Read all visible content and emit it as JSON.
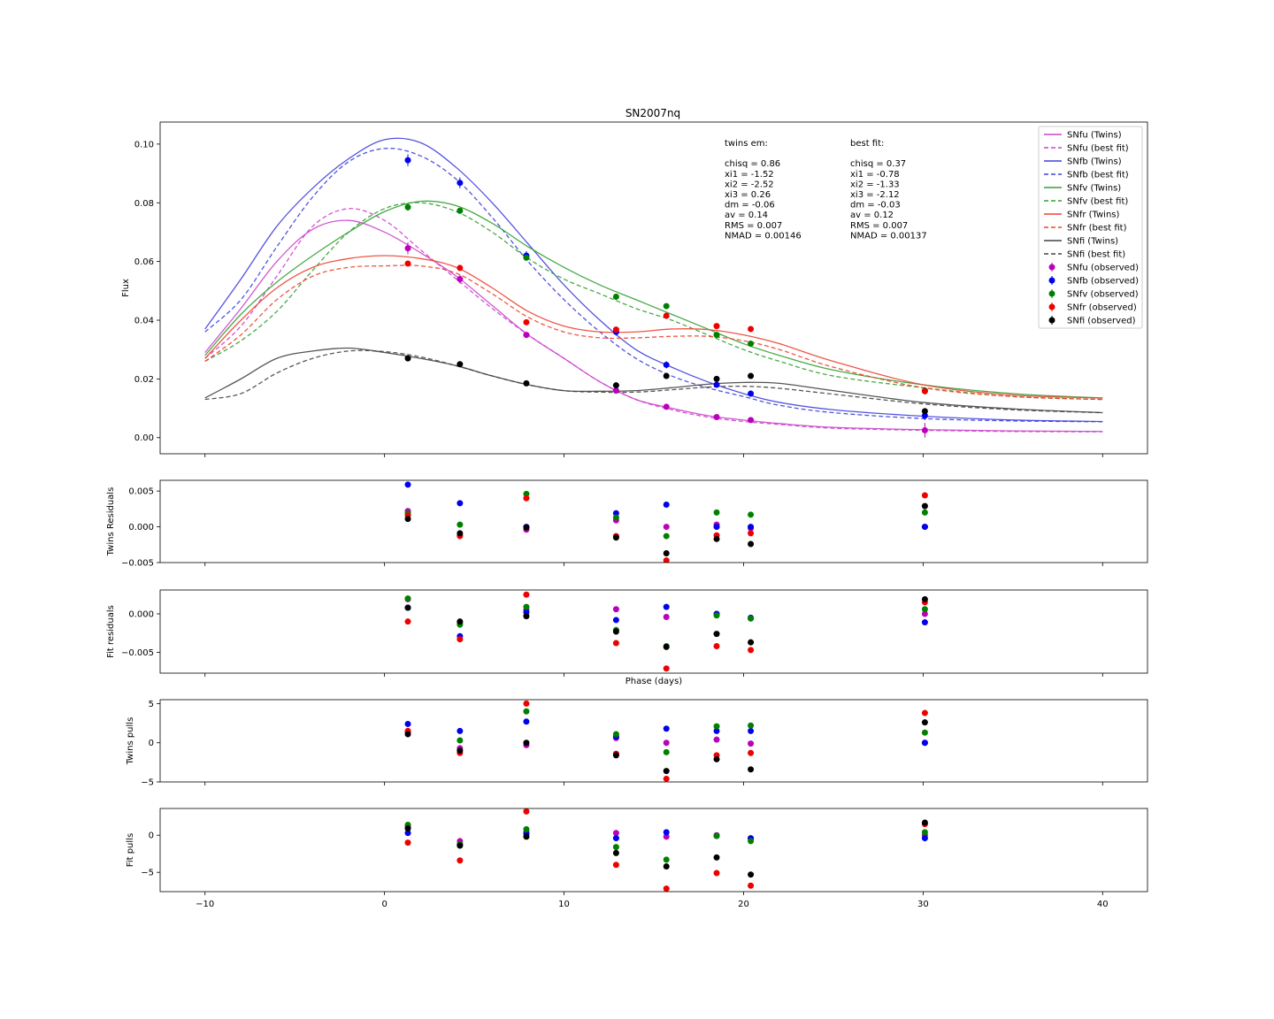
{
  "chart_data": [
    {
      "type": "line",
      "title": "SN2007nq",
      "xlabel": "",
      "ylabel": "Flux",
      "xlim": [
        -12.5,
        42.5
      ],
      "ylim": [
        -0.0055,
        0.1075
      ],
      "xticks": [
        -10,
        0,
        10,
        20,
        30,
        40
      ],
      "yticks": [
        0.0,
        0.02,
        0.04,
        0.06,
        0.08,
        0.1
      ],
      "ytick_labels": [
        "0.00",
        "0.02",
        "0.04",
        "0.06",
        "0.08",
        "0.10"
      ],
      "grid": false,
      "legend_position": "top-right",
      "annotations": {
        "twins": [
          "twins em:",
          "",
          "chisq = 0.86",
          "xi1 = -1.52",
          "xi2 = -2.52",
          "xi3 = 0.26",
          "dm = -0.06",
          "av = 0.14",
          "RMS = 0.007",
          "NMAD = 0.00146"
        ],
        "best": [
          "best fit:",
          "",
          "chisq = 0.37",
          "xi1 = -0.78",
          "xi2 = -1.33",
          "xi3 = -2.12",
          "dm = -0.03",
          "av = 0.12",
          "RMS = 0.007",
          "NMAD = 0.00137"
        ]
      },
      "x": [
        1.3,
        4.2,
        7.9,
        12.9,
        15.7,
        18.5,
        20.4,
        30.1
      ],
      "series": [
        {
          "name": "SNfu (Twins)",
          "kind": "line",
          "dash": false,
          "color": "#cc44cc",
          "x": [
            -10,
            -8,
            -6,
            -4,
            -2,
            0,
            2,
            4,
            6,
            8,
            10,
            12,
            14,
            16,
            18,
            20,
            22,
            25,
            30,
            35,
            40
          ],
          "values": [
            0.029,
            0.044,
            0.06,
            0.071,
            0.074,
            0.07,
            0.063,
            0.055,
            0.045,
            0.035,
            0.027,
            0.019,
            0.013,
            0.01,
            0.0075,
            0.006,
            0.0048,
            0.0035,
            0.0027,
            0.0023,
            0.0021
          ]
        },
        {
          "name": "SNfu (best fit)",
          "kind": "line",
          "dash": true,
          "color": "#cc44cc",
          "x": [
            -10,
            -8,
            -6,
            -4,
            -2,
            0,
            2,
            4,
            6,
            8,
            10,
            12,
            14,
            16,
            18,
            20,
            22,
            25,
            30,
            35,
            40
          ],
          "values": [
            0.027,
            0.038,
            0.055,
            0.072,
            0.078,
            0.074,
            0.064,
            0.054,
            0.044,
            0.035,
            0.027,
            0.019,
            0.013,
            0.0095,
            0.007,
            0.0055,
            0.0045,
            0.0032,
            0.0025,
            0.0021,
            0.002
          ]
        },
        {
          "name": "SNfb (Twins)",
          "kind": "line",
          "dash": false,
          "color": "#4040dd",
          "x": [
            -10,
            -8,
            -6,
            -4,
            -2,
            0,
            2,
            4,
            6,
            8,
            10,
            12,
            14,
            16,
            18,
            20,
            22,
            25,
            30,
            35,
            40
          ],
          "values": [
            0.037,
            0.054,
            0.072,
            0.085,
            0.095,
            0.1015,
            0.1005,
            0.092,
            0.08,
            0.066,
            0.052,
            0.04,
            0.03,
            0.024,
            0.019,
            0.015,
            0.012,
            0.0095,
            0.0073,
            0.006,
            0.0055
          ]
        },
        {
          "name": "SNfb (best fit)",
          "kind": "line",
          "dash": true,
          "color": "#4040dd",
          "x": [
            -10,
            -8,
            -6,
            -4,
            -2,
            0,
            2,
            4,
            6,
            8,
            10,
            12,
            14,
            16,
            18,
            20,
            22,
            25,
            30,
            35,
            40
          ],
          "values": [
            0.036,
            0.047,
            0.065,
            0.082,
            0.094,
            0.0985,
            0.096,
            0.088,
            0.075,
            0.06,
            0.047,
            0.036,
            0.027,
            0.021,
            0.017,
            0.014,
            0.011,
            0.0085,
            0.0065,
            0.0057,
            0.0054
          ]
        },
        {
          "name": "SNfv (Twins)",
          "kind": "line",
          "dash": false,
          "color": "#33a033",
          "x": [
            -10,
            -8,
            -6,
            -4,
            -2,
            0,
            2,
            4,
            6,
            8,
            10,
            12,
            14,
            16,
            18,
            20,
            22,
            25,
            30,
            35,
            40
          ],
          "values": [
            0.028,
            0.042,
            0.053,
            0.062,
            0.07,
            0.077,
            0.0805,
            0.079,
            0.073,
            0.065,
            0.058,
            0.052,
            0.047,
            0.042,
            0.037,
            0.032,
            0.028,
            0.023,
            0.018,
            0.015,
            0.0135
          ]
        },
        {
          "name": "SNfv (best fit)",
          "kind": "line",
          "dash": true,
          "color": "#33a033",
          "x": [
            -10,
            -8,
            -6,
            -4,
            -2,
            0,
            2,
            4,
            6,
            8,
            10,
            12,
            14,
            16,
            18,
            20,
            22,
            25,
            30,
            35,
            40
          ],
          "values": [
            0.026,
            0.033,
            0.043,
            0.057,
            0.07,
            0.078,
            0.08,
            0.077,
            0.07,
            0.061,
            0.054,
            0.049,
            0.044,
            0.04,
            0.035,
            0.03,
            0.026,
            0.021,
            0.017,
            0.014,
            0.013
          ]
        },
        {
          "name": "SNfr (Twins)",
          "kind": "line",
          "dash": false,
          "color": "#ee4433",
          "x": [
            -10,
            -8,
            -6,
            -4,
            -2,
            0,
            2,
            4,
            6,
            8,
            10,
            12,
            14,
            16,
            18,
            20,
            22,
            25,
            30,
            35,
            40
          ],
          "values": [
            0.027,
            0.04,
            0.051,
            0.058,
            0.061,
            0.062,
            0.061,
            0.058,
            0.051,
            0.043,
            0.038,
            0.036,
            0.036,
            0.037,
            0.0368,
            0.035,
            0.032,
            0.026,
            0.018,
            0.0145,
            0.0135
          ]
        },
        {
          "name": "SNfr (best fit)",
          "kind": "line",
          "dash": true,
          "color": "#ee4433",
          "x": [
            -10,
            -8,
            -6,
            -4,
            -2,
            0,
            2,
            4,
            6,
            8,
            10,
            12,
            14,
            16,
            18,
            20,
            22,
            25,
            30,
            35,
            40
          ],
          "values": [
            0.026,
            0.035,
            0.047,
            0.055,
            0.058,
            0.0585,
            0.0585,
            0.056,
            0.049,
            0.041,
            0.036,
            0.034,
            0.034,
            0.0345,
            0.0345,
            0.033,
            0.03,
            0.024,
            0.017,
            0.014,
            0.013
          ]
        },
        {
          "name": "SNfi (Twins)",
          "kind": "line",
          "dash": false,
          "color": "#444444",
          "x": [
            -10,
            -8,
            -6,
            -4,
            -2,
            0,
            2,
            4,
            6,
            8,
            10,
            12,
            14,
            16,
            18,
            20,
            22,
            25,
            30,
            35,
            40
          ],
          "values": [
            0.0135,
            0.02,
            0.027,
            0.0295,
            0.0305,
            0.029,
            0.027,
            0.0245,
            0.021,
            0.018,
            0.016,
            0.0158,
            0.016,
            0.017,
            0.0182,
            0.0188,
            0.0185,
            0.016,
            0.012,
            0.0098,
            0.0085
          ]
        },
        {
          "name": "SNfi (best fit)",
          "kind": "line",
          "dash": true,
          "color": "#444444",
          "x": [
            -10,
            -8,
            -6,
            -4,
            -2,
            0,
            2,
            4,
            6,
            8,
            10,
            12,
            14,
            16,
            18,
            20,
            22,
            25,
            30,
            35,
            40
          ],
          "values": [
            0.013,
            0.015,
            0.022,
            0.027,
            0.0295,
            0.0293,
            0.0275,
            0.0245,
            0.021,
            0.018,
            0.016,
            0.0155,
            0.0155,
            0.0163,
            0.0172,
            0.0175,
            0.0168,
            0.0148,
            0.0115,
            0.0095,
            0.0085
          ]
        },
        {
          "name": "SNfu (observed)",
          "kind": "points",
          "color": "#bb00bb",
          "values": [
            0.0645,
            0.054,
            0.035,
            0.016,
            0.0105,
            0.007,
            0.006,
            0.0025
          ],
          "errors": [
            0.002,
            0.0015,
            0.001,
            0.001,
            0.0008,
            0.0007,
            0.0007,
            0.0025
          ]
        },
        {
          "name": "SNfb (observed)",
          "kind": "points",
          "color": "#0000ee",
          "values": [
            0.0945,
            0.0868,
            0.062,
            0.036,
            0.0248,
            0.018,
            0.015,
            0.0075
          ],
          "errors": [
            0.002,
            0.0018,
            0.0015,
            0.0012,
            0.0012,
            0.001,
            0.001,
            0.0015
          ]
        },
        {
          "name": "SNfv (observed)",
          "kind": "points",
          "color": "#008000",
          "values": [
            0.0785,
            0.0773,
            0.0613,
            0.048,
            0.0448,
            0.035,
            0.032,
            0.016
          ],
          "errors": [
            0.0012,
            0.001,
            0.001,
            0.001,
            0.001,
            0.0008,
            0.0008,
            0.0012
          ]
        },
        {
          "name": "SNfr (observed)",
          "kind": "points",
          "color": "#ee0000",
          "values": [
            0.0593,
            0.0578,
            0.0393,
            0.0368,
            0.0415,
            0.038,
            0.037,
            0.0158
          ],
          "errors": [
            0.001,
            0.0008,
            0.0008,
            0.0008,
            0.0008,
            0.0008,
            0.0008,
            0.001
          ]
        },
        {
          "name": "SNfi (observed)",
          "kind": "points",
          "color": "#000000",
          "values": [
            0.027,
            0.025,
            0.0185,
            0.0178,
            0.021,
            0.02,
            0.021,
            0.009
          ],
          "errors": [
            0.0008,
            0.0007,
            0.0006,
            0.0006,
            0.0006,
            0.0006,
            0.0006,
            0.0009
          ]
        }
      ]
    },
    {
      "type": "scatter",
      "ylabel": "Twins Residuals",
      "xlim": [
        -12.5,
        42.5
      ],
      "ylim": [
        -0.005,
        0.0065
      ],
      "yticks": [
        -0.005,
        0.0,
        0.005
      ],
      "ytick_labels": [
        "−0.005",
        "0.000",
        "0.005"
      ],
      "x": [
        1.3,
        4.2,
        7.9,
        12.9,
        15.7,
        18.5,
        20.4,
        30.1
      ],
      "series": [
        {
          "color": "#bb00bb",
          "values": [
            0.0022,
            -0.0012,
            -0.0004,
            0.0009,
            0.0,
            0.0003,
            -0.0002,
            0.0
          ]
        },
        {
          "color": "#0000ee",
          "values": [
            0.0059,
            0.0033,
            0.0,
            0.0019,
            0.0031,
            0.0,
            0.0,
            0.0
          ]
        },
        {
          "color": "#008000",
          "values": [
            0.0019,
            0.0003,
            0.0046,
            0.0013,
            -0.0013,
            0.002,
            0.0017,
            0.002
          ]
        },
        {
          "color": "#ee0000",
          "values": [
            0.0016,
            -0.0013,
            0.004,
            -0.0013,
            -0.0047,
            -0.0012,
            -0.0009,
            0.0044
          ]
        },
        {
          "color": "#000000",
          "values": [
            0.0011,
            -0.0009,
            -0.0001,
            -0.0015,
            -0.0037,
            -0.0017,
            -0.0024,
            0.0029
          ]
        }
      ]
    },
    {
      "type": "scatter",
      "ylabel": "Fit residuals",
      "xlim": [
        -12.5,
        42.5
      ],
      "ylim": [
        -0.0077,
        0.0031
      ],
      "yticks": [
        -0.005,
        0.0
      ],
      "ytick_labels": [
        "−0.005",
        "0.000"
      ],
      "xlabel": "Phase (days)",
      "x": [
        1.3,
        4.2,
        7.9,
        12.9,
        15.7,
        18.5,
        20.4,
        30.1
      ],
      "series": [
        {
          "color": "#bb00bb",
          "values": [
            0.0019,
            -0.0012,
            0.0005,
            0.0006,
            -0.0004,
            0.0,
            -0.0006,
            0.0
          ]
        },
        {
          "color": "#0000ee",
          "values": [
            0.0008,
            -0.0029,
            0.0002,
            -0.0008,
            0.0009,
            0.0,
            -0.0005,
            -0.0011
          ]
        },
        {
          "color": "#008000",
          "values": [
            0.002,
            -0.0014,
            0.0009,
            -0.0021,
            -0.0042,
            -0.0002,
            -0.0006,
            0.0006
          ]
        },
        {
          "color": "#ee0000",
          "values": [
            -0.001,
            -0.0033,
            0.0025,
            -0.0038,
            -0.0071,
            -0.0042,
            -0.0047,
            0.0015
          ]
        },
        {
          "color": "#000000",
          "values": [
            0.0008,
            -0.001,
            -0.0003,
            -0.0023,
            -0.0043,
            -0.0026,
            -0.0037,
            0.0019
          ]
        }
      ]
    },
    {
      "type": "scatter",
      "ylabel": "Twins pulls",
      "xlim": [
        -12.5,
        42.5
      ],
      "ylim": [
        -5,
        5.5
      ],
      "yticks": [
        -5,
        0,
        5
      ],
      "ytick_labels": [
        "−5",
        "0",
        "5"
      ],
      "x": [
        1.3,
        4.2,
        7.9,
        12.9,
        15.7,
        18.5,
        20.4,
        30.1
      ],
      "series": [
        {
          "color": "#bb00bb",
          "values": [
            1.3,
            -0.7,
            -0.3,
            0.6,
            0.0,
            0.4,
            -0.1,
            0.0
          ]
        },
        {
          "color": "#0000ee",
          "values": [
            2.4,
            1.5,
            2.7,
            0.8,
            1.8,
            1.5,
            1.5,
            0.0
          ]
        },
        {
          "color": "#008000",
          "values": [
            1.5,
            0.3,
            4.0,
            1.1,
            -1.2,
            2.1,
            2.2,
            1.3
          ]
        },
        {
          "color": "#ee0000",
          "values": [
            1.5,
            -1.3,
            5.0,
            -1.4,
            -4.6,
            -1.6,
            -1.3,
            3.8
          ]
        },
        {
          "color": "#000000",
          "values": [
            1.1,
            -1.0,
            0.0,
            -1.6,
            -3.6,
            -2.1,
            -3.4,
            2.6
          ]
        }
      ]
    },
    {
      "type": "scatter",
      "ylabel": "Fit pulls",
      "xlim": [
        -12.5,
        42.5
      ],
      "ylim": [
        -7.6,
        3.6
      ],
      "yticks": [
        -5,
        0
      ],
      "ytick_labels": [
        "−5",
        "0"
      ],
      "x": [
        1.3,
        4.2,
        7.9,
        12.9,
        15.7,
        18.5,
        20.4,
        30.1
      ],
      "series": [
        {
          "color": "#bb00bb",
          "values": [
            1.2,
            -0.8,
            0.4,
            0.3,
            -0.2,
            0.0,
            -0.5,
            0.0
          ]
        },
        {
          "color": "#0000ee",
          "values": [
            0.3,
            -1.3,
            0.2,
            -0.4,
            0.4,
            -0.1,
            -0.4,
            -0.4
          ]
        },
        {
          "color": "#008000",
          "values": [
            1.4,
            -1.2,
            0.8,
            -1.6,
            -3.3,
            -0.1,
            -0.8,
            0.4
          ]
        },
        {
          "color": "#ee0000",
          "values": [
            -1.0,
            -3.4,
            3.2,
            -4.0,
            -7.2,
            -5.1,
            -6.8,
            1.5
          ]
        },
        {
          "color": "#000000",
          "values": [
            0.9,
            -1.4,
            -0.2,
            -2.4,
            -4.2,
            -3.0,
            -5.3,
            1.7
          ]
        }
      ]
    }
  ]
}
